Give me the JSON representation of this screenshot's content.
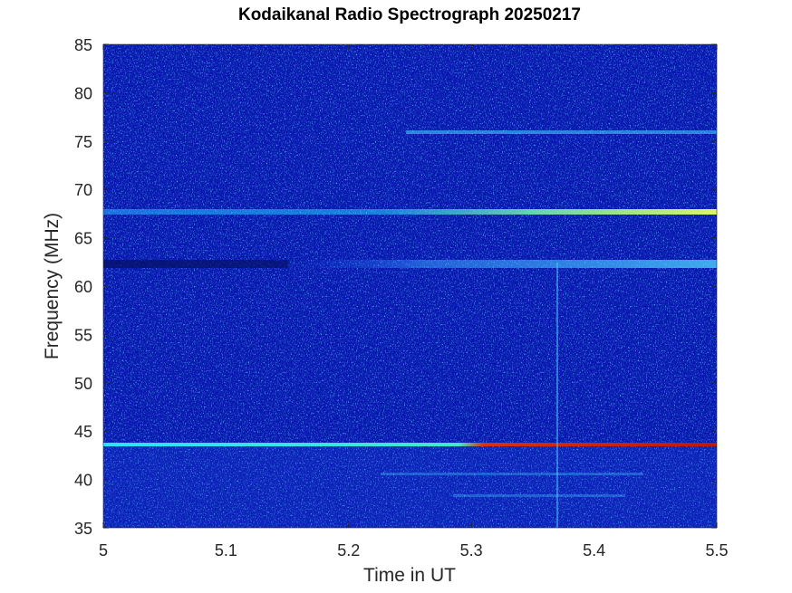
{
  "chart_data": {
    "type": "heatmap",
    "title": "Kodaikanal Radio Spectrograph  20250217",
    "x_label": "Time in UT",
    "y_label": "Frequency (MHz)",
    "xlim": [
      5,
      5.5
    ],
    "xticks": [
      5,
      5.1,
      5.2,
      5.3,
      5.4,
      5.5
    ],
    "ylim": [
      35,
      85
    ],
    "yticks": [
      35,
      40,
      45,
      50,
      55,
      60,
      65,
      70,
      75,
      80,
      85
    ]
  }
}
